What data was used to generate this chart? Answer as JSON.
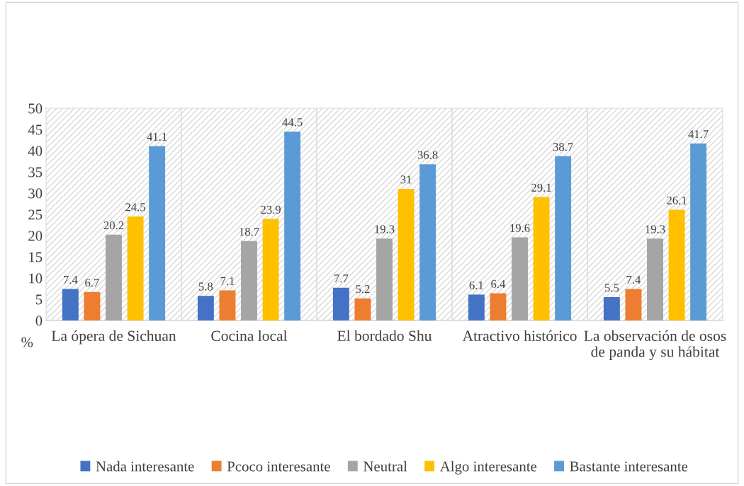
{
  "chart_data": {
    "type": "bar",
    "categories": [
      "La ópera de Sichuan",
      "Cocina local",
      "El bordado Shu",
      "Atractivo histórico",
      "La observación de osos de panda y su hábitat"
    ],
    "ylabel": "%",
    "ylim": [
      0,
      50
    ],
    "yticks": [
      0,
      5,
      10,
      15,
      20,
      25,
      30,
      35,
      40,
      45,
      50
    ],
    "series": [
      {
        "name": "Nada interesante",
        "color": "#4472c4",
        "values": [
          7.4,
          5.8,
          7.7,
          6.1,
          5.5
        ]
      },
      {
        "name": "Pcoco interesante",
        "color": "#ed7d31",
        "values": [
          6.7,
          7.1,
          5.2,
          6.4,
          7.4
        ]
      },
      {
        "name": "Neutral",
        "color": "#a5a5a5",
        "values": [
          20.2,
          18.7,
          19.3,
          19.6,
          19.3
        ]
      },
      {
        "name": "Algo interesante",
        "color": "#ffc000",
        "values": [
          24.5,
          23.9,
          31,
          29.1,
          26.1
        ]
      },
      {
        "name": "Bastante interesante",
        "color": "#5b9bd5",
        "values": [
          41.1,
          44.5,
          36.8,
          38.7,
          41.7
        ]
      }
    ],
    "data_labels": true,
    "grid": "x",
    "legend": "bottom"
  }
}
